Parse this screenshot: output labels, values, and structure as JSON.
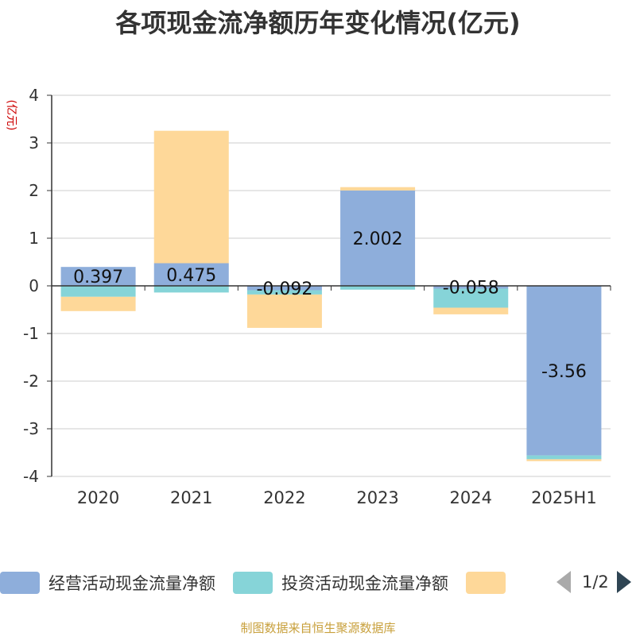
{
  "chart_data": {
    "type": "bar",
    "stacked": true,
    "title": "各项现金流净额历年变化情况(亿元)",
    "ylabel": "(亿元)",
    "xlabel": "",
    "ylim": [
      -4,
      4
    ],
    "yticks": [
      4,
      3,
      2,
      1,
      0,
      -1,
      -2,
      -3,
      -4
    ],
    "grid": true,
    "categories": [
      "2020",
      "2021",
      "2022",
      "2023",
      "2024",
      "2025H1"
    ],
    "series": [
      {
        "name": "经营活动现金流量净额",
        "color": "#8eaedb",
        "values": [
          0.397,
          0.475,
          -0.092,
          2.002,
          -0.058,
          -3.56
        ],
        "labels": [
          "0.397",
          "0.475",
          "-0.092",
          "2.002",
          "-0.058",
          "-3.56"
        ]
      },
      {
        "name": "投资活动现金流量净额",
        "color": "#86d4d8",
        "values": [
          -0.23,
          -0.14,
          -0.09,
          -0.08,
          -0.4,
          -0.08
        ]
      },
      {
        "name": "",
        "color": "#fed899",
        "values": [
          -0.3,
          2.78,
          -0.7,
          0.07,
          -0.14,
          -0.04
        ]
      }
    ],
    "legend_position": "bottom"
  },
  "legend": {
    "page": "1/2"
  },
  "footer": {
    "source": "制图数据来自恒生聚源数据库"
  }
}
